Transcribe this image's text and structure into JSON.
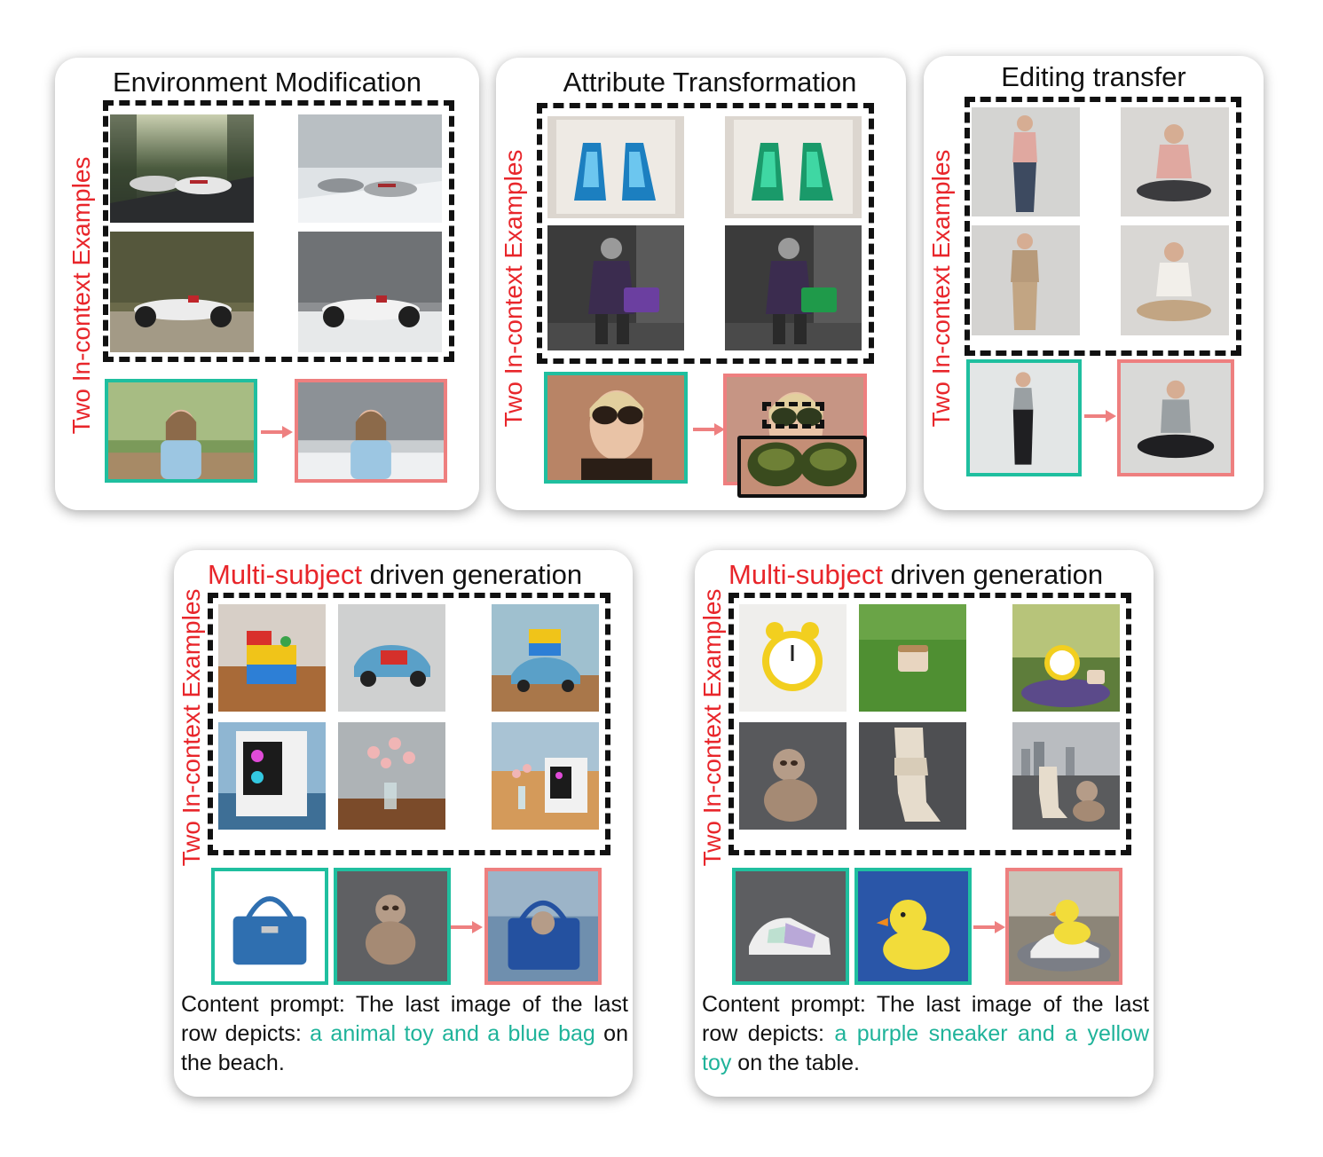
{
  "panels": {
    "env": {
      "title": "Environment Modification",
      "side_label": "Two In-context Examples"
    },
    "attr": {
      "title": "Attribute Transformation",
      "side_label": "Two In-context Examples"
    },
    "edit": {
      "title": "Editing transfer",
      "side_label": "Two In-context Examples"
    },
    "multi1": {
      "title_highlight": "Multi-subject",
      "title_rest": " driven generation",
      "side_label": "Two In-context Examples",
      "prompt_prefix": "Content prompt: The last image of the last row depicts: ",
      "prompt_highlight": "a animal toy and a blue bag",
      "prompt_suffix": " on the beach."
    },
    "multi2": {
      "title_highlight": "Multi-subject",
      "title_rest": " driven generation",
      "side_label": "Two In-context Examples",
      "prompt_prefix": "Content prompt: The last image of the last row depicts: ",
      "prompt_highlight": "a purple sneaker and a yellow toy",
      "prompt_suffix": " on the table."
    }
  },
  "colors": {
    "label_red": "#e8262b",
    "highlight_teal": "#1fb39a",
    "input_border": "#1fbf9f",
    "output_border": "#ee7f7f"
  }
}
